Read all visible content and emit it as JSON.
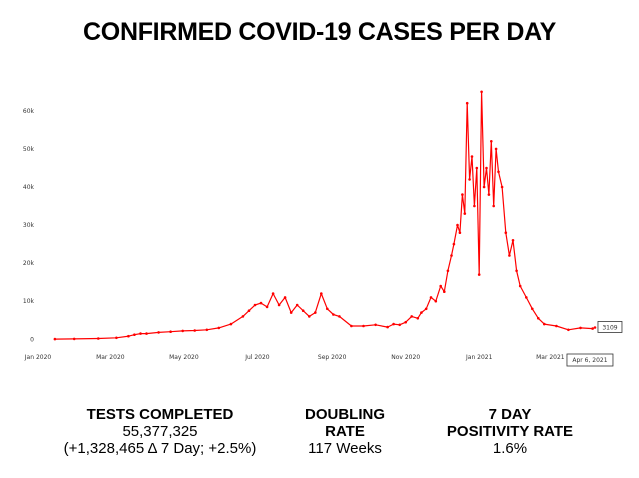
{
  "title": "CONFIRMED COVID-19 CASES PER DAY",
  "colors": {
    "line": "#ff0000",
    "axis": "#999999"
  },
  "chart_data": {
    "type": "line",
    "title": "CONFIRMED COVID-19 CASES PER DAY",
    "xlabel": "",
    "ylabel": "",
    "x_ticks": [
      "Jan 2020",
      "Mar 2020",
      "May 2020",
      "Jul 2020",
      "Sep 2020",
      "Nov 2020",
      "Jan 2021",
      "Mar 2021"
    ],
    "x_tick_days": [
      0,
      60,
      121,
      182,
      244,
      305,
      366,
      425
    ],
    "y_ticks": [
      "0",
      "10k",
      "20k",
      "30k",
      "40k",
      "50k",
      "60k"
    ],
    "y_tick_values": [
      0,
      10000,
      20000,
      30000,
      40000,
      50000,
      60000
    ],
    "xlim_days": [
      0,
      467
    ],
    "ylim": [
      -1500,
      66000
    ],
    "series": [
      {
        "name": "Confirmed cases per day",
        "x_days": [
          14,
          30,
          50,
          65,
          75,
          80,
          85,
          90,
          100,
          110,
          120,
          130,
          140,
          150,
          160,
          170,
          175,
          180,
          185,
          190,
          195,
          200,
          205,
          210,
          215,
          220,
          225,
          230,
          235,
          240,
          245,
          250,
          260,
          270,
          280,
          290,
          295,
          300,
          305,
          310,
          315,
          318,
          322,
          326,
          330,
          334,
          337,
          340,
          343,
          345,
          348,
          350,
          352,
          354,
          356,
          358,
          360,
          362,
          364,
          366,
          368,
          370,
          372,
          374,
          376,
          378,
          380,
          382,
          385,
          388,
          391,
          394,
          397,
          400,
          405,
          410,
          415,
          420,
          430,
          440,
          450,
          460,
          462
        ],
        "values": [
          50,
          100,
          200,
          400,
          800,
          1200,
          1500,
          1500,
          1800,
          2000,
          2200,
          2300,
          2500,
          3000,
          4000,
          6000,
          7500,
          9000,
          9500,
          8500,
          12000,
          9000,
          11000,
          7000,
          9000,
          7500,
          6000,
          7000,
          12000,
          8000,
          6500,
          6000,
          3500,
          3500,
          3800,
          3200,
          4000,
          3800,
          4500,
          6000,
          5500,
          7000,
          8000,
          11000,
          10000,
          14000,
          12500,
          18000,
          22000,
          25000,
          30000,
          28000,
          38000,
          33000,
          62000,
          42000,
          48000,
          35000,
          45000,
          17000,
          65000,
          40000,
          45000,
          38000,
          52000,
          35000,
          50000,
          44000,
          40000,
          28000,
          22000,
          26000,
          18000,
          14000,
          11000,
          8000,
          5500,
          4000,
          3500,
          2500,
          3000,
          2800,
          3109
        ]
      }
    ],
    "annotations": {
      "last_value": "3109",
      "last_date": "Apr 6, 2021"
    }
  },
  "stats": {
    "tests": {
      "label": "TESTS COMPLETED",
      "value": "55,377,325",
      "change": "(+1,328,465 Δ 7 Day; +2.5%)"
    },
    "doubling": {
      "label_line1": "DOUBLING",
      "label_line2": "RATE",
      "value": "117 Weeks"
    },
    "positivity": {
      "label_line1": "7 DAY",
      "label_line2": "POSITIVITY RATE",
      "value": "1.6%"
    }
  }
}
